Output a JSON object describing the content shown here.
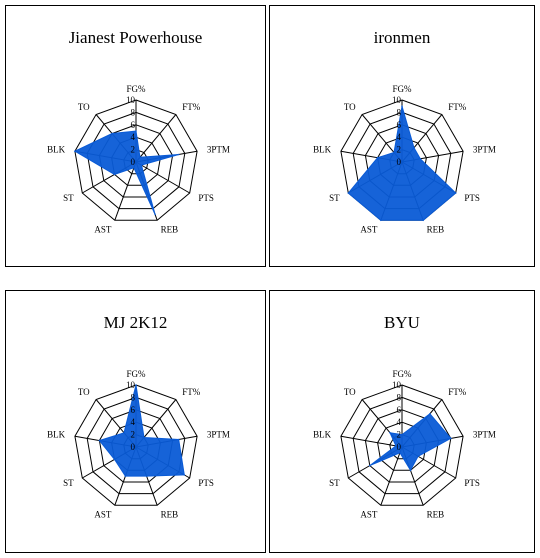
{
  "chart_data": [
    {
      "type": "radar",
      "title": "Jianest Powerhouse",
      "axes": [
        "FG%",
        "FT%",
        "3PTM",
        "PTS",
        "REB",
        "AST",
        "ST",
        "BLK",
        "TO"
      ],
      "rlim": [
        0,
        10
      ],
      "ticks": [
        "0",
        "2",
        "4",
        "6",
        "8",
        "10"
      ],
      "values": [
        5,
        1,
        7,
        1,
        9,
        1,
        4,
        10,
        6
      ],
      "color": "#0a5bd6"
    },
    {
      "type": "radar",
      "title": "ironmen",
      "axes": [
        "FG%",
        "FT%",
        "3PTM",
        "PTS",
        "REB",
        "AST",
        "ST",
        "BLK",
        "TO"
      ],
      "rlim": [
        0,
        10
      ],
      "ticks": [
        "0",
        "2",
        "4",
        "6",
        "8",
        "10"
      ],
      "values": [
        9,
        3,
        3,
        10,
        10,
        10,
        10,
        4,
        2
      ],
      "color": "#0a5bd6"
    },
    {
      "type": "radar",
      "title": "MJ 2K12",
      "axes": [
        "FG%",
        "FT%",
        "3PTM",
        "PTS",
        "REB",
        "AST",
        "ST",
        "BLK",
        "TO"
      ],
      "rlim": [
        0,
        10
      ],
      "ticks": [
        "0",
        "2",
        "4",
        "6",
        "8",
        "10"
      ],
      "values": [
        10,
        2,
        7,
        9,
        5,
        5,
        4,
        6,
        3
      ],
      "color": "#0a5bd6"
    },
    {
      "type": "radar",
      "title": "BYU",
      "axes": [
        "FG%",
        "FT%",
        "3PTM",
        "PTS",
        "REB",
        "AST",
        "ST",
        "BLK",
        "TO"
      ],
      "rlim": [
        0,
        10
      ],
      "ticks": [
        "0",
        "2",
        "4",
        "6",
        "8",
        "10"
      ],
      "values": [
        2,
        7,
        8,
        3,
        4,
        1,
        6,
        1,
        3
      ],
      "color": "#0a5bd6"
    }
  ]
}
